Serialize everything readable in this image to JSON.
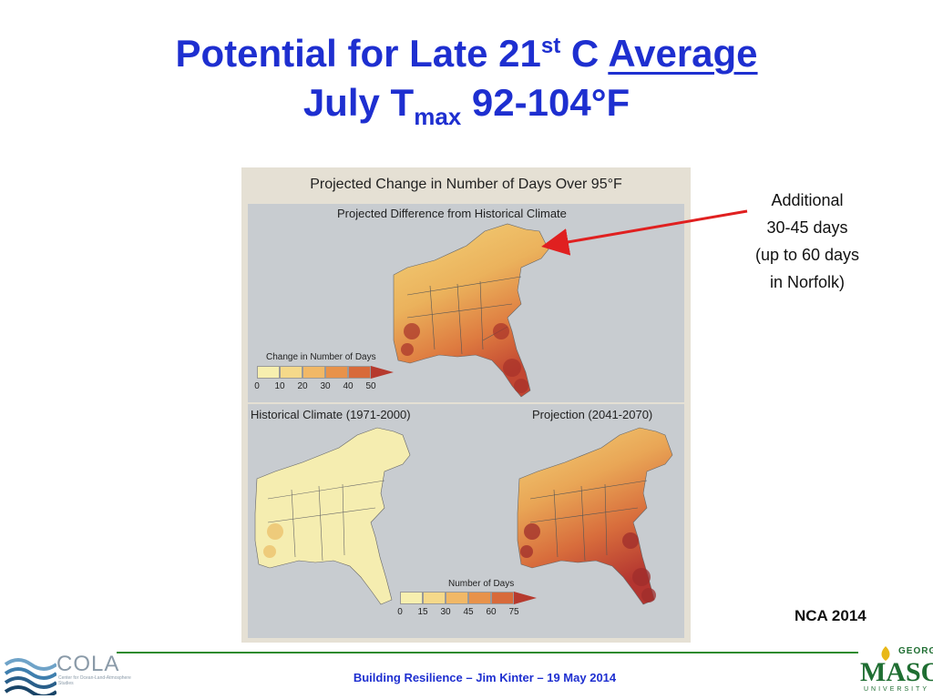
{
  "slide": {
    "title_line1_a": "Potential for Late 21",
    "title_line1_sup": "st",
    "title_line1_b": " C ",
    "title_line1_underlined": "Average",
    "title_line2_a": "July T",
    "title_line2_sub": "max",
    "title_line2_b": " 92-104°F"
  },
  "figure": {
    "title": "Projected Change in Number of Days Over 95°F",
    "top_panel_label": "Projected Difference from Historical Climate",
    "top_scale_title": "Change in Number of Days",
    "top_scale_ticks": [
      "0",
      "10",
      "20",
      "30",
      "40",
      "50"
    ],
    "top_scale_colors": [
      "#f7efaf",
      "#f5d98a",
      "#f1b866",
      "#e8924a",
      "#d86a3a",
      "#b63a2e"
    ],
    "hist_label": "Historical Climate (1971-2000)",
    "proj_label": "Projection (2041-2070)",
    "bottom_scale_title": "Number of Days",
    "bottom_scale_ticks": [
      "0",
      "15",
      "30",
      "45",
      "60",
      "75"
    ],
    "bottom_scale_colors": [
      "#f7efaf",
      "#f5d98a",
      "#f1b866",
      "#e8924a",
      "#d86a3a",
      "#b63a2e"
    ]
  },
  "annotation": {
    "line1": "Additional",
    "line2": "30-45 days",
    "line3": "(up to 60 days",
    "line4": "in Norfolk)",
    "arrow_color": "#e02020"
  },
  "source": "NCA 2014",
  "footer": {
    "text": "Building Resilience – Jim Kinter – 19 May 2014",
    "cola_name": "COLA",
    "cola_sub": "Center for Ocean-Land-Atmosphere Studies",
    "gmu_top": "GEORGE",
    "gmu_main": "MASON",
    "gmu_bottom": "UNIVERSITY"
  },
  "colors": {
    "title": "#1e2fd0",
    "footer_line": "#2e8b2e",
    "gmu_green": "#1f6e32"
  }
}
